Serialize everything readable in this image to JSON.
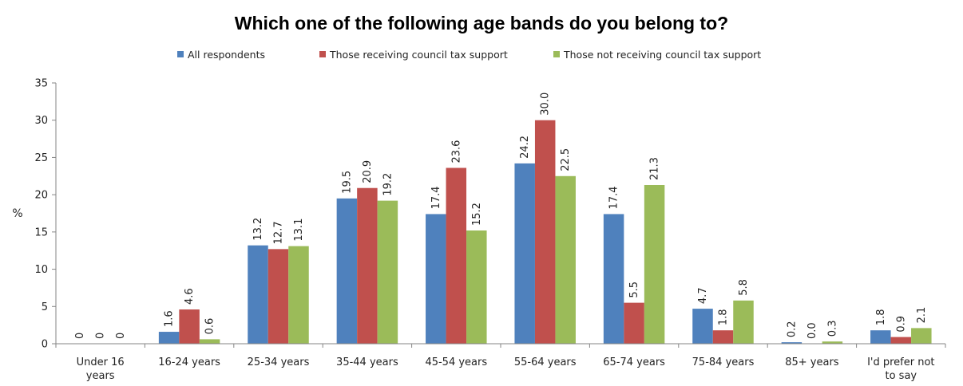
{
  "chart_data": {
    "type": "bar",
    "title": "Which one of the following age bands do you belong to?",
    "ylabel": "%",
    "xlabel": "",
    "ylim": [
      0,
      35
    ],
    "yticks": [
      0,
      5,
      10,
      15,
      20,
      25,
      30,
      35
    ],
    "grid": false,
    "legend": "top",
    "categories": [
      [
        "Under 16",
        "years"
      ],
      [
        "16-24 years"
      ],
      [
        "25-34 years"
      ],
      [
        "35-44 years"
      ],
      [
        "45-54 years"
      ],
      [
        "55-64 years"
      ],
      [
        "65-74 years"
      ],
      [
        "75-84 years"
      ],
      [
        "85+ years"
      ],
      [
        "I'd prefer not",
        "to say"
      ]
    ],
    "series": [
      {
        "name": "All respondents",
        "color": "#4F81BD",
        "values": [
          0,
          1.6,
          13.2,
          19.5,
          17.4,
          24.2,
          17.4,
          4.7,
          0.2,
          1.8
        ],
        "labels": [
          "0",
          "1.6",
          "13.2",
          "19.5",
          "17.4",
          "24.2",
          "17.4",
          "4.7",
          "0.2",
          "1.8"
        ]
      },
      {
        "name": "Those receiving council tax support",
        "color": "#C0504D",
        "values": [
          0,
          4.6,
          12.7,
          20.9,
          23.6,
          30.0,
          5.5,
          1.8,
          0.0,
          0.9
        ],
        "labels": [
          "0",
          "4.6",
          "12.7",
          "20.9",
          "23.6",
          "30.0",
          "5.5",
          "1.8",
          "0.0",
          "0.9"
        ]
      },
      {
        "name": "Those not receiving council tax support",
        "color": "#9BBB59",
        "values": [
          0,
          0.6,
          13.1,
          19.2,
          15.2,
          22.5,
          21.3,
          5.8,
          0.3,
          2.1
        ],
        "labels": [
          "0",
          "0.6",
          "13.1",
          "19.2",
          "15.2",
          "22.5",
          "21.3",
          "5.8",
          "0.3",
          "2.1"
        ]
      }
    ]
  }
}
